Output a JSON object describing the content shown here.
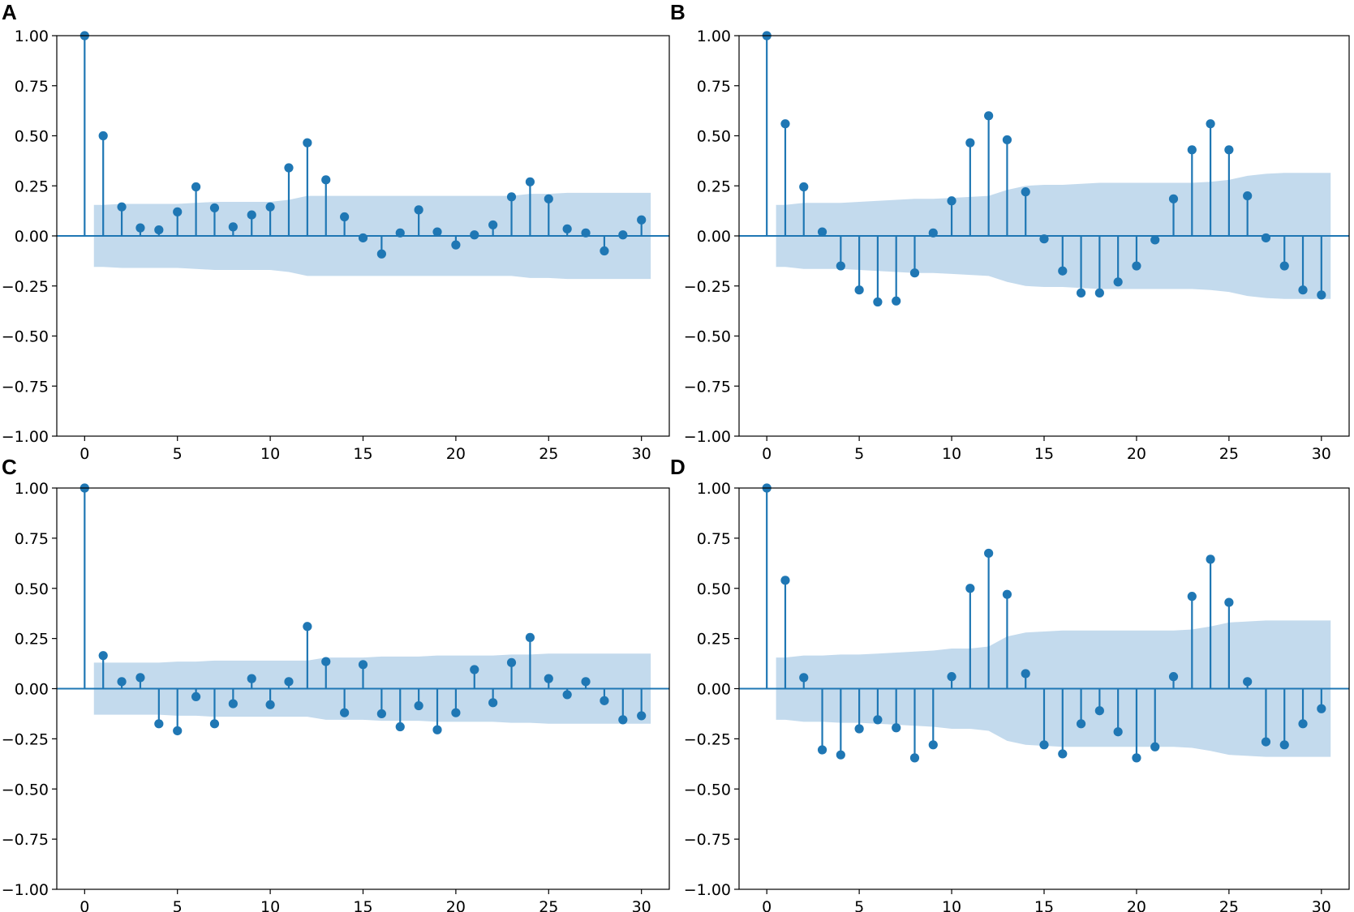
{
  "chart_data": [
    {
      "panel": "A",
      "type": "stem",
      "xlim": [
        -1.5,
        31.5
      ],
      "ylim": [
        -1.0,
        1.0
      ],
      "xticks": [
        0,
        5,
        10,
        15,
        20,
        25,
        30
      ],
      "yticks": [
        "1.00",
        "0.75",
        "0.50",
        "0.25",
        "0.00",
        "−0.25",
        "−0.50",
        "−0.75",
        "−1.00"
      ],
      "lags": [
        0,
        1,
        2,
        3,
        4,
        5,
        6,
        7,
        8,
        9,
        10,
        11,
        12,
        13,
        14,
        15,
        16,
        17,
        18,
        19,
        20,
        21,
        22,
        23,
        24,
        25,
        26,
        27,
        28,
        29,
        30
      ],
      "values": [
        1.0,
        0.5,
        0.145,
        0.04,
        0.03,
        0.12,
        0.245,
        0.14,
        0.045,
        0.105,
        0.145,
        0.34,
        0.465,
        0.28,
        0.095,
        -0.01,
        -0.09,
        0.015,
        0.13,
        0.02,
        -0.045,
        0.005,
        0.055,
        0.195,
        0.27,
        0.185,
        0.035,
        0.015,
        -0.075,
        0.005,
        0.08
      ],
      "confint": [
        0.125,
        0.155,
        0.16,
        0.16,
        0.16,
        0.16,
        0.165,
        0.17,
        0.17,
        0.17,
        0.17,
        0.18,
        0.2,
        0.2,
        0.2,
        0.2,
        0.2,
        0.2,
        0.2,
        0.2,
        0.2,
        0.2,
        0.2,
        0.2,
        0.21,
        0.21,
        0.215,
        0.215,
        0.215,
        0.215,
        0.215
      ]
    },
    {
      "panel": "B",
      "type": "stem",
      "xlim": [
        -1.5,
        31.5
      ],
      "ylim": [
        -1.0,
        1.0
      ],
      "xticks": [
        0,
        5,
        10,
        15,
        20,
        25,
        30
      ],
      "yticks": [
        "1.00",
        "0.75",
        "0.50",
        "0.25",
        "0.00",
        "−0.25",
        "−0.50",
        "−0.75",
        "−1.00"
      ],
      "lags": [
        0,
        1,
        2,
        3,
        4,
        5,
        6,
        7,
        8,
        9,
        10,
        11,
        12,
        13,
        14,
        15,
        16,
        17,
        18,
        19,
        20,
        21,
        22,
        23,
        24,
        25,
        26,
        27,
        28,
        29,
        30
      ],
      "values": [
        1.0,
        0.56,
        0.245,
        0.02,
        -0.15,
        -0.27,
        -0.33,
        -0.325,
        -0.185,
        0.015,
        0.175,
        0.465,
        0.6,
        0.48,
        0.22,
        -0.015,
        -0.175,
        -0.285,
        -0.285,
        -0.23,
        -0.15,
        -0.02,
        0.185,
        0.43,
        0.56,
        0.43,
        0.2,
        -0.01,
        -0.15,
        -0.27,
        -0.295
      ],
      "confint": [
        0.125,
        0.155,
        0.165,
        0.165,
        0.165,
        0.17,
        0.175,
        0.18,
        0.185,
        0.185,
        0.19,
        0.195,
        0.2,
        0.23,
        0.25,
        0.255,
        0.255,
        0.26,
        0.265,
        0.265,
        0.265,
        0.265,
        0.265,
        0.265,
        0.27,
        0.28,
        0.3,
        0.31,
        0.315,
        0.315,
        0.315
      ]
    },
    {
      "panel": "C",
      "type": "stem",
      "xlim": [
        -1.5,
        31.5
      ],
      "ylim": [
        -1.0,
        1.0
      ],
      "xticks": [
        0,
        5,
        10,
        15,
        20,
        25,
        30
      ],
      "yticks": [
        "1.00",
        "0.75",
        "0.50",
        "0.25",
        "0.00",
        "−0.25",
        "−0.50",
        "−0.75",
        "−1.00"
      ],
      "lags": [
        0,
        1,
        2,
        3,
        4,
        5,
        6,
        7,
        8,
        9,
        10,
        11,
        12,
        13,
        14,
        15,
        16,
        17,
        18,
        19,
        20,
        21,
        22,
        23,
        24,
        25,
        26,
        27,
        28,
        29,
        30
      ],
      "values": [
        1.0,
        0.165,
        0.035,
        0.055,
        -0.175,
        -0.21,
        -0.04,
        -0.175,
        -0.075,
        0.05,
        -0.08,
        0.035,
        0.31,
        0.135,
        -0.12,
        0.12,
        -0.125,
        -0.19,
        -0.085,
        -0.205,
        -0.12,
        0.095,
        -0.07,
        0.13,
        0.255,
        0.05,
        -0.03,
        0.035,
        -0.06,
        -0.155,
        -0.135
      ],
      "confint": [
        0.125,
        0.13,
        0.13,
        0.13,
        0.13,
        0.135,
        0.135,
        0.14,
        0.14,
        0.14,
        0.14,
        0.14,
        0.14,
        0.155,
        0.155,
        0.155,
        0.16,
        0.16,
        0.16,
        0.165,
        0.165,
        0.165,
        0.165,
        0.17,
        0.17,
        0.175,
        0.175,
        0.175,
        0.175,
        0.175,
        0.175
      ]
    },
    {
      "panel": "D",
      "type": "stem",
      "xlim": [
        -1.5,
        31.5
      ],
      "ylim": [
        -1.0,
        1.0
      ],
      "xticks": [
        0,
        5,
        10,
        15,
        20,
        25,
        30
      ],
      "yticks": [
        "1.00",
        "0.75",
        "0.50",
        "0.25",
        "0.00",
        "−0.25",
        "−0.50",
        "−0.75",
        "−1.00"
      ],
      "lags": [
        0,
        1,
        2,
        3,
        4,
        5,
        6,
        7,
        8,
        9,
        10,
        11,
        12,
        13,
        14,
        15,
        16,
        17,
        18,
        19,
        20,
        21,
        22,
        23,
        24,
        25,
        26,
        27,
        28,
        29,
        30
      ],
      "values": [
        1.0,
        0.54,
        0.055,
        -0.305,
        -0.33,
        -0.2,
        -0.155,
        -0.195,
        -0.345,
        -0.28,
        0.06,
        0.5,
        0.675,
        0.47,
        0.075,
        -0.28,
        -0.325,
        -0.175,
        -0.11,
        -0.215,
        -0.345,
        -0.29,
        0.06,
        0.46,
        0.645,
        0.43,
        0.035,
        -0.265,
        -0.28,
        -0.175,
        -0.1
      ],
      "confint": [
        0.125,
        0.155,
        0.165,
        0.165,
        0.17,
        0.17,
        0.175,
        0.18,
        0.185,
        0.19,
        0.2,
        0.2,
        0.21,
        0.26,
        0.28,
        0.285,
        0.29,
        0.29,
        0.29,
        0.29,
        0.29,
        0.29,
        0.29,
        0.295,
        0.31,
        0.33,
        0.335,
        0.34,
        0.34,
        0.34,
        0.34
      ]
    }
  ],
  "colors": {
    "stem": "#1f77b4",
    "band": "#a9cbe5",
    "axis": "#000000"
  }
}
